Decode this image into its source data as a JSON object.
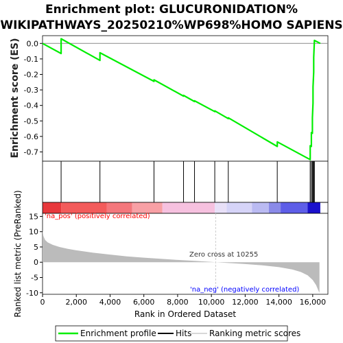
{
  "title_line1": "Enrichment plot: GLUCURONIDATION%",
  "title_line2": "WIKIPATHWAYS_20250210%WP698%HOMO SAPIENS",
  "colors": {
    "es_line": "#00ee00",
    "hits": "#000000",
    "ranked_fill": "#bbbbbb",
    "pos_label": "#ff0000",
    "neg_label": "#0000ff",
    "zero_line": "#cccccc",
    "grid": "#eeeeee"
  },
  "chart_data": [
    {
      "type": "line",
      "name": "enrichment-profile",
      "ylabel": "Enrichment score (ES)",
      "ylim": [
        -0.76,
        0.05
      ],
      "yticks": [
        "0.0",
        "-0.1",
        "-0.2",
        "-0.3",
        "-0.4",
        "-0.5",
        "-0.6",
        "-0.7"
      ],
      "ytick_values": [
        0.0,
        -0.1,
        -0.2,
        -0.3,
        -0.4,
        -0.5,
        -0.6,
        -0.7
      ],
      "x": [
        0,
        1100,
        1100,
        3400,
        3400,
        6600,
        6600,
        8350,
        8350,
        9000,
        9000,
        10200,
        10200,
        11000,
        11000,
        13900,
        13900,
        15850,
        15850,
        15920,
        15920,
        15980,
        15980,
        16020,
        16020,
        16060,
        16060,
        16100,
        16100,
        16450
      ],
      "y": [
        0.0,
        -0.065,
        0.03,
        -0.11,
        -0.06,
        -0.245,
        -0.235,
        -0.34,
        -0.335,
        -0.375,
        -0.37,
        -0.44,
        -0.435,
        -0.485,
        -0.48,
        -0.665,
        -0.635,
        -0.75,
        -0.66,
        -0.665,
        -0.575,
        -0.58,
        -0.48,
        -0.385,
        -0.28,
        -0.185,
        -0.09,
        0.015,
        0.02,
        0.0
      ]
    },
    {
      "type": "hits",
      "name": "hits",
      "x": [
        1100,
        3400,
        6600,
        8350,
        9000,
        10200,
        11000,
        13900,
        15850,
        15920,
        15980,
        16020,
        16060,
        16100
      ]
    },
    {
      "type": "area",
      "name": "ranking-metric-scores",
      "xlabel": "Rank in Ordered Dataset",
      "ylabel": "Ranked list metric (PreRanked)",
      "xlim": [
        0,
        16900
      ],
      "ylim": [
        -10.5,
        16
      ],
      "xticks": [
        "0",
        "2,000",
        "4,000",
        "6,000",
        "8,000",
        "10,000",
        "12,000",
        "14,000",
        "16,000"
      ],
      "xtick_values": [
        0,
        2000,
        4000,
        6000,
        8000,
        10000,
        12000,
        14000,
        16000
      ],
      "yticks": [
        "15",
        "10",
        "5",
        "0",
        "-5",
        "-10"
      ],
      "ytick_values": [
        15,
        10,
        5,
        0,
        -5,
        -10
      ],
      "x": [
        0,
        50,
        150,
        300,
        600,
        1000,
        1500,
        2000,
        3000,
        4000,
        5000,
        6000,
        7000,
        8000,
        9000,
        10000,
        10255,
        11000,
        12000,
        13000,
        14000,
        14800,
        15300,
        15700,
        16000,
        16200,
        16350,
        16400
      ],
      "y": [
        10.5,
        8.6,
        7.3,
        6.5,
        5.7,
        5.0,
        4.4,
        3.9,
        3.1,
        2.5,
        1.9,
        1.5,
        1.1,
        0.75,
        0.45,
        0.1,
        0.0,
        -0.25,
        -0.6,
        -1.0,
        -1.6,
        -2.4,
        -3.2,
        -4.3,
        -5.8,
        -7.5,
        -9.5,
        -10.0
      ]
    }
  ],
  "annotations": {
    "pos_label": "'na_pos' (positively correlated)",
    "neg_label": "'na_neg' (negatively correlated)",
    "zero_cross": "Zero cross at 10255",
    "zero_cross_x": 10255
  },
  "colorbar": [
    {
      "x0": 0,
      "x1": 1100,
      "color": "#e8383c"
    },
    {
      "x0": 1100,
      "x1": 3800,
      "color": "#f35b5b"
    },
    {
      "x0": 3800,
      "x1": 5300,
      "color": "#f4777c"
    },
    {
      "x0": 5300,
      "x1": 7100,
      "color": "#f8a0a5"
    },
    {
      "x0": 7100,
      "x1": 10200,
      "color": "#f6c1df"
    },
    {
      "x0": 10200,
      "x1": 10900,
      "color": "#e8e0f8"
    },
    {
      "x0": 10900,
      "x1": 12400,
      "color": "#d6d4f8"
    },
    {
      "x0": 12400,
      "x1": 13400,
      "color": "#babaf2"
    },
    {
      "x0": 13400,
      "x1": 14100,
      "color": "#8a8ae8"
    },
    {
      "x0": 14100,
      "x1": 15700,
      "color": "#5e5ee8"
    },
    {
      "x0": 15700,
      "x1": 16450,
      "color": "#1a10cc"
    }
  ],
  "legend": {
    "es": "Enrichment profile",
    "hits": "Hits",
    "metric": "Ranking metric scores"
  }
}
